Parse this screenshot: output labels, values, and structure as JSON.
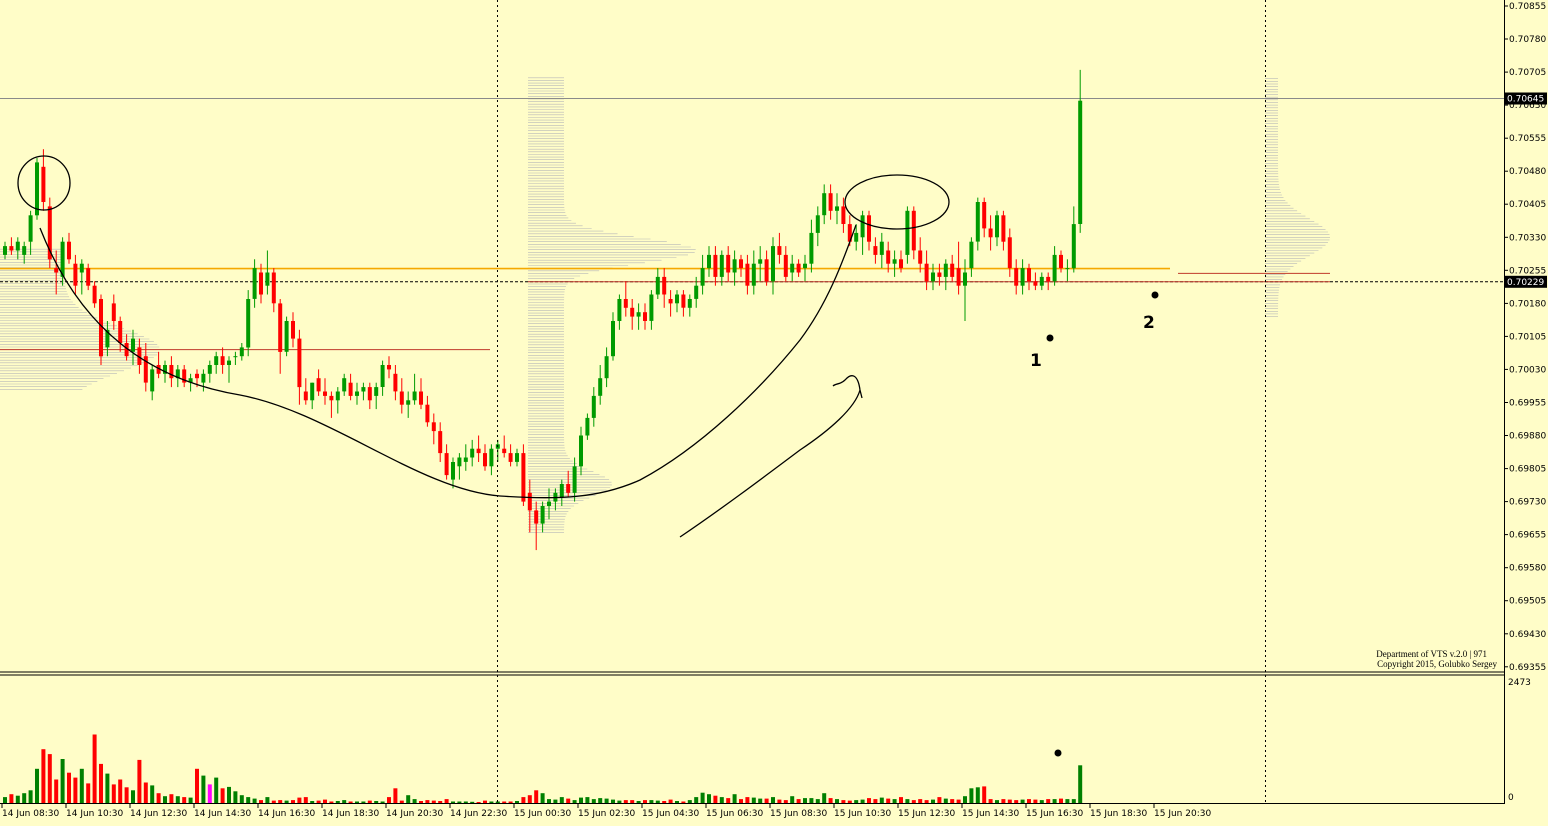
{
  "chart_data": {
    "type": "candlestick",
    "price_axis": {
      "min": 0.6935,
      "max": 0.70855,
      "tick_labels": [
        "0.70855",
        "0.70780",
        "0.70705",
        "0.70630",
        "0.70555",
        "0.70480",
        "0.70405",
        "0.70330",
        "0.70255",
        "0.70180",
        "0.70105",
        "0.70030",
        "0.69955",
        "0.69880",
        "0.69805",
        "0.69730",
        "0.69655",
        "0.69580",
        "0.69505",
        "0.69430",
        "0.69355"
      ]
    },
    "price_markers": [
      {
        "label": "0.70645",
        "value": 0.70645
      },
      {
        "label": "0.70229",
        "value": 0.70229
      }
    ],
    "horizontal_levels": [
      {
        "value": 0.70645,
        "color": "#8a8a8a",
        "style": "solid"
      },
      {
        "value": 0.70229,
        "color": "#000000",
        "style": "dashed"
      },
      {
        "value": 0.70259,
        "color": "#f5a800",
        "style": "solid"
      },
      {
        "value": 0.70075,
        "color": "#c0392b",
        "style": "solid"
      }
    ],
    "time_labels": [
      "14 Jun 08:30",
      "14 Jun 10:30",
      "14 Jun 12:30",
      "14 Jun 14:30",
      "14 Jun 16:30",
      "14 Jun 18:30",
      "14 Jun 20:30",
      "14 Jun 22:30",
      "15 Jun 00:30",
      "15 Jun 02:30",
      "15 Jun 04:30",
      "15 Jun 06:30",
      "15 Jun 08:30",
      "15 Jun 10:30",
      "15 Jun 12:30",
      "15 Jun 14:30",
      "15 Jun 16:30",
      "15 Jun 18:30",
      "15 Jun 20:30"
    ],
    "candles": [
      [
        0.7029,
        0.7032,
        0.7028,
        0.7031
      ],
      [
        0.7031,
        0.7033,
        0.7029,
        0.703
      ],
      [
        0.703,
        0.7033,
        0.7028,
        0.7032
      ],
      [
        0.7029,
        0.7032,
        0.7027,
        0.7031
      ],
      [
        0.7032,
        0.7039,
        0.7029,
        0.7038
      ],
      [
        0.7038,
        0.7051,
        0.7037,
        0.705
      ],
      [
        0.7049,
        0.7053,
        0.7039,
        0.7041
      ],
      [
        0.704,
        0.7042,
        0.7026,
        0.7028
      ],
      [
        0.7026,
        0.703,
        0.702,
        0.7025
      ],
      [
        0.7024,
        0.7033,
        0.7022,
        0.7032
      ],
      [
        0.7032,
        0.7034,
        0.7027,
        0.7028
      ],
      [
        0.7027,
        0.7029,
        0.702,
        0.7022
      ],
      [
        0.7025,
        0.7028,
        0.702,
        0.7027
      ],
      [
        0.7026,
        0.7027,
        0.7021,
        0.7022
      ],
      [
        0.7022,
        0.7023,
        0.7017,
        0.7018
      ],
      [
        0.7019,
        0.702,
        0.7004,
        0.7006
      ],
      [
        0.7008,
        0.7014,
        0.7006,
        0.7012
      ],
      [
        0.7018,
        0.702,
        0.7012,
        0.7014
      ],
      [
        0.7014,
        0.7015,
        0.7007,
        0.7009
      ],
      [
        0.7009,
        0.7011,
        0.7005,
        0.7006
      ],
      [
        0.7007,
        0.7012,
        0.7004,
        0.701
      ],
      [
        0.7008,
        0.701,
        0.7002,
        0.7004
      ],
      [
        0.7006,
        0.7009,
        0.6998,
        0.7
      ],
      [
        0.6998,
        0.7004,
        0.6996,
        0.7003
      ],
      [
        0.7004,
        0.7007,
        0.7001,
        0.7002
      ],
      [
        0.7002,
        0.7005,
        0.7,
        0.7004
      ],
      [
        0.7004,
        0.7006,
        0.6999,
        0.7001
      ],
      [
        0.7001,
        0.7004,
        0.6999,
        0.7003
      ],
      [
        0.7003,
        0.7004,
        0.6999,
        0.7
      ],
      [
        0.7,
        0.7002,
        0.6998,
        0.7001
      ],
      [
        0.7002,
        0.7003,
        0.6999,
        0.7001
      ],
      [
        0.7,
        0.7003,
        0.6998,
        0.7002
      ],
      [
        0.7002,
        0.7005,
        0.7,
        0.7004
      ],
      [
        0.7004,
        0.7007,
        0.7002,
        0.7006
      ],
      [
        0.7006,
        0.7008,
        0.7002,
        0.7004
      ],
      [
        0.7004,
        0.7006,
        0.7,
        0.7005
      ],
      [
        0.7006,
        0.7007,
        0.7004,
        0.7006
      ],
      [
        0.7006,
        0.7009,
        0.7005,
        0.7008
      ],
      [
        0.7008,
        0.7021,
        0.7006,
        0.7019
      ],
      [
        0.7019,
        0.7028,
        0.7017,
        0.7026
      ],
      [
        0.7025,
        0.7027,
        0.7018,
        0.702
      ],
      [
        0.7022,
        0.703,
        0.702,
        0.7025
      ],
      [
        0.7025,
        0.7026,
        0.7016,
        0.7018
      ],
      [
        0.7018,
        0.7019,
        0.7002,
        0.7007
      ],
      [
        0.7007,
        0.7015,
        0.7006,
        0.7014
      ],
      [
        0.7014,
        0.7016,
        0.7008,
        0.701
      ],
      [
        0.701,
        0.7012,
        0.6995,
        0.6999
      ],
      [
        0.6998,
        0.7001,
        0.6995,
        0.6996
      ],
      [
        0.6996,
        0.7,
        0.6994,
        0.7
      ],
      [
        0.7001,
        0.7003,
        0.6997,
        0.6998
      ],
      [
        0.6998,
        0.7001,
        0.6995,
        0.6997
      ],
      [
        0.6997,
        0.6998,
        0.6992,
        0.6996
      ],
      [
        0.6996,
        0.6999,
        0.6993,
        0.6998
      ],
      [
        0.6998,
        0.7002,
        0.6997,
        0.7001
      ],
      [
        0.7,
        0.7002,
        0.6996,
        0.6997
      ],
      [
        0.6997,
        0.7,
        0.6995,
        0.6998
      ],
      [
        0.6998,
        0.7,
        0.6996,
        0.6999
      ],
      [
        0.6999,
        0.7,
        0.6994,
        0.6996
      ],
      [
        0.6997,
        0.7,
        0.6994,
        0.6999
      ],
      [
        0.6999,
        0.7005,
        0.6997,
        0.7004
      ],
      [
        0.7004,
        0.7006,
        0.7001,
        0.7003
      ],
      [
        0.7002,
        0.7004,
        0.6996,
        0.6998
      ],
      [
        0.6998,
        0.7001,
        0.6993,
        0.6995
      ],
      [
        0.6995,
        0.6998,
        0.6992,
        0.6996
      ],
      [
        0.6996,
        0.7002,
        0.6995,
        0.6998
      ],
      [
        0.6998,
        0.7001,
        0.6994,
        0.6995
      ],
      [
        0.6995,
        0.6997,
        0.699,
        0.6991
      ],
      [
        0.6991,
        0.6993,
        0.6986,
        0.6989
      ],
      [
        0.6989,
        0.6991,
        0.6982,
        0.6984
      ],
      [
        0.6984,
        0.6986,
        0.6978,
        0.6979
      ],
      [
        0.6978,
        0.6983,
        0.6976,
        0.6982
      ],
      [
        0.6981,
        0.6984,
        0.6978,
        0.6983
      ],
      [
        0.6982,
        0.6986,
        0.698,
        0.6983
      ],
      [
        0.6983,
        0.6987,
        0.6981,
        0.6985
      ],
      [
        0.6985,
        0.6988,
        0.6982,
        0.6984
      ],
      [
        0.6984,
        0.6986,
        0.698,
        0.6981
      ],
      [
        0.6981,
        0.6986,
        0.6979,
        0.6985
      ],
      [
        0.6985,
        0.6987,
        0.6982,
        0.6986
      ],
      [
        0.6985,
        0.6988,
        0.6983,
        0.6984
      ],
      [
        0.6984,
        0.6986,
        0.6981,
        0.6982
      ],
      [
        0.6982,
        0.6985,
        0.6981,
        0.6984
      ],
      [
        0.6984,
        0.6986,
        0.6972,
        0.6973
      ],
      [
        0.6975,
        0.6978,
        0.6966,
        0.6971
      ],
      [
        0.6971,
        0.6973,
        0.6962,
        0.6968
      ],
      [
        0.6968,
        0.6973,
        0.6966,
        0.6972
      ],
      [
        0.6972,
        0.6976,
        0.6969,
        0.6973
      ],
      [
        0.6973,
        0.6976,
        0.6971,
        0.6975
      ],
      [
        0.6974,
        0.6978,
        0.6972,
        0.6977
      ],
      [
        0.6977,
        0.698,
        0.6974,
        0.6975
      ],
      [
        0.6975,
        0.6983,
        0.6973,
        0.6981
      ],
      [
        0.6981,
        0.699,
        0.6979,
        0.6988
      ],
      [
        0.6988,
        0.6993,
        0.6987,
        0.6992
      ],
      [
        0.6992,
        0.6999,
        0.699,
        0.6997
      ],
      [
        0.6997,
        0.7004,
        0.6995,
        0.7001
      ],
      [
        0.7001,
        0.7008,
        0.6999,
        0.7006
      ],
      [
        0.7006,
        0.7016,
        0.7005,
        0.7014
      ],
      [
        0.7014,
        0.702,
        0.7012,
        0.7019
      ],
      [
        0.7019,
        0.7023,
        0.7015,
        0.7017
      ],
      [
        0.7017,
        0.7019,
        0.7012,
        0.7015
      ],
      [
        0.7015,
        0.7018,
        0.7012,
        0.7016
      ],
      [
        0.7016,
        0.7018,
        0.7012,
        0.7014
      ],
      [
        0.7014,
        0.7021,
        0.7012,
        0.702
      ],
      [
        0.702,
        0.7026,
        0.7019,
        0.7024
      ],
      [
        0.7024,
        0.7026,
        0.7017,
        0.702
      ],
      [
        0.7019,
        0.7021,
        0.7015,
        0.7018
      ],
      [
        0.7018,
        0.7021,
        0.7016,
        0.702
      ],
      [
        0.702,
        0.7021,
        0.7015,
        0.7017
      ],
      [
        0.7017,
        0.702,
        0.7015,
        0.7019
      ],
      [
        0.7019,
        0.7024,
        0.7017,
        0.7022
      ],
      [
        0.7022,
        0.7029,
        0.702,
        0.7026
      ],
      [
        0.7026,
        0.7031,
        0.7024,
        0.7029
      ],
      [
        0.7029,
        0.7031,
        0.7022,
        0.7024
      ],
      [
        0.7024,
        0.703,
        0.7022,
        0.7029
      ],
      [
        0.7029,
        0.7031,
        0.7023,
        0.7025
      ],
      [
        0.7025,
        0.703,
        0.7022,
        0.7028
      ],
      [
        0.7028,
        0.7029,
        0.7024,
        0.7026
      ],
      [
        0.7027,
        0.7029,
        0.702,
        0.7022
      ],
      [
        0.7022,
        0.703,
        0.702,
        0.7027
      ],
      [
        0.7027,
        0.7031,
        0.7023,
        0.7028
      ],
      [
        0.7028,
        0.703,
        0.7022,
        0.7023
      ],
      [
        0.7023,
        0.7033,
        0.702,
        0.7031
      ],
      [
        0.7031,
        0.7034,
        0.7027,
        0.7029
      ],
      [
        0.7029,
        0.7031,
        0.7023,
        0.7024
      ],
      [
        0.7025,
        0.7029,
        0.7023,
        0.7027
      ],
      [
        0.7027,
        0.7028,
        0.7024,
        0.7025
      ],
      [
        0.7026,
        0.7029,
        0.7023,
        0.7027
      ],
      [
        0.7027,
        0.7037,
        0.7025,
        0.7034
      ],
      [
        0.7034,
        0.704,
        0.7031,
        0.7038
      ],
      [
        0.7038,
        0.7045,
        0.7036,
        0.7043
      ],
      [
        0.7043,
        0.7045,
        0.7037,
        0.7039
      ],
      [
        0.7039,
        0.7043,
        0.7036,
        0.704
      ],
      [
        0.704,
        0.7042,
        0.7034,
        0.7036
      ],
      [
        0.7036,
        0.7038,
        0.7031,
        0.7032
      ],
      [
        0.7032,
        0.7036,
        0.703,
        0.7034
      ],
      [
        0.7033,
        0.7039,
        0.7029,
        0.7038
      ],
      [
        0.7038,
        0.7039,
        0.703,
        0.7032
      ],
      [
        0.7031,
        0.7033,
        0.7027,
        0.7029
      ],
      [
        0.7029,
        0.7034,
        0.7026,
        0.7032
      ],
      [
        0.703,
        0.7032,
        0.7025,
        0.7027
      ],
      [
        0.7027,
        0.703,
        0.7024,
        0.7028
      ],
      [
        0.7028,
        0.703,
        0.7025,
        0.7026
      ],
      [
        0.7029,
        0.704,
        0.7027,
        0.7039
      ],
      [
        0.7039,
        0.704,
        0.7028,
        0.703
      ],
      [
        0.703,
        0.7033,
        0.7025,
        0.7027
      ],
      [
        0.7027,
        0.703,
        0.7021,
        0.7023
      ],
      [
        0.7023,
        0.7027,
        0.7021,
        0.7025
      ],
      [
        0.7025,
        0.7027,
        0.7022,
        0.7024
      ],
      [
        0.7024,
        0.7028,
        0.7021,
        0.7027
      ],
      [
        0.7027,
        0.7029,
        0.7023,
        0.7024
      ],
      [
        0.7026,
        0.7032,
        0.702,
        0.7022
      ],
      [
        0.7022,
        0.7028,
        0.7014,
        0.7025
      ],
      [
        0.7026,
        0.7033,
        0.7024,
        0.7032
      ],
      [
        0.7032,
        0.7042,
        0.703,
        0.7041
      ],
      [
        0.7041,
        0.7042,
        0.7033,
        0.7035
      ],
      [
        0.7035,
        0.7038,
        0.703,
        0.7033
      ],
      [
        0.7033,
        0.7039,
        0.7031,
        0.7038
      ],
      [
        0.7038,
        0.7039,
        0.703,
        0.7032
      ],
      [
        0.7033,
        0.7035,
        0.7024,
        0.7026
      ],
      [
        0.7026,
        0.7028,
        0.702,
        0.7022
      ],
      [
        0.7022,
        0.7028,
        0.702,
        0.7026
      ],
      [
        0.7026,
        0.7027,
        0.7021,
        0.7023
      ],
      [
        0.7023,
        0.7025,
        0.7021,
        0.7022
      ],
      [
        0.7022,
        0.7025,
        0.7021,
        0.7024
      ],
      [
        0.7024,
        0.7025,
        0.7021,
        0.7023
      ],
      [
        0.7023,
        0.7031,
        0.7022,
        0.7029
      ],
      [
        0.7029,
        0.703,
        0.7025,
        0.7026
      ],
      [
        0.7026,
        0.7028,
        0.7023,
        0.7026
      ],
      [
        0.7026,
        0.704,
        0.7025,
        0.7036
      ],
      [
        0.7036,
        0.7071,
        0.7034,
        0.7064
      ]
    ],
    "volume_axis": {
      "max": 2473,
      "tick_labels": [
        "2473",
        "0"
      ]
    },
    "volume_colors": {
      "up": "#008000",
      "down": "#ff0000",
      "highlight": "#ff00ff"
    },
    "volume": [
      120,
      180,
      150,
      200,
      260,
      700,
      1100,
      1000,
      480,
      900,
      620,
      520,
      700,
      400,
      1400,
      800,
      600,
      380,
      480,
      320,
      260,
      880,
      420,
      360,
      200,
      140,
      180,
      140,
      120,
      110,
      700,
      560,
      380,
      520,
      300,
      330,
      240,
      160,
      120,
      90,
      60,
      120,
      50,
      60,
      50,
      60,
      110,
      120,
      40,
      50,
      70,
      30,
      40,
      60,
      30,
      30,
      30,
      50,
      40,
      30,
      120,
      300,
      50,
      160,
      80,
      40,
      60,
      50,
      40,
      80,
      30,
      30,
      30,
      25,
      20,
      50,
      30,
      30,
      30,
      30,
      40,
      120,
      160,
      260,
      200,
      80,
      70,
      120,
      90,
      60,
      110,
      120,
      80,
      100,
      90,
      70,
      50,
      60,
      60,
      40,
      60,
      60,
      50,
      40,
      70,
      40,
      30,
      60,
      120,
      210,
      180,
      150,
      120,
      100,
      180,
      80,
      120,
      110,
      90,
      90,
      120,
      70,
      60,
      140,
      80,
      100,
      100,
      80,
      200,
      100,
      80,
      60,
      50,
      60,
      70,
      100,
      80,
      110,
      90,
      80,
      120,
      80,
      60,
      80,
      60,
      70,
      120,
      90,
      80,
      70,
      140,
      300,
      320,
      340,
      80,
      60,
      80,
      70,
      60,
      70,
      80,
      70,
      60,
      80,
      80,
      90,
      80,
      80,
      770
    ]
  },
  "annotations": {
    "label_1": "1",
    "label_2": "2"
  },
  "watermark": {
    "line1": "Department of VTS  v.2.0 | 971",
    "line2": "Copyright 2015, Golubko Sergey"
  },
  "colors": {
    "background": "#fffdc8",
    "bull": "#009a00",
    "bear": "#ff0000",
    "profile": "#b8b8b8"
  }
}
